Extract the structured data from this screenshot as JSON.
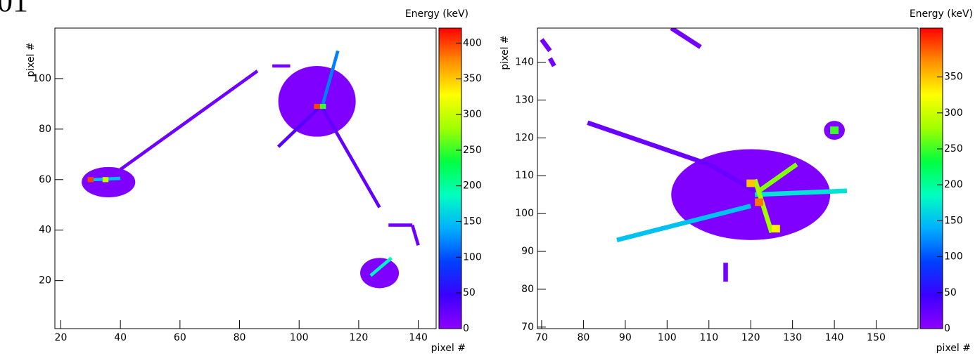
{
  "page_fragment": "01",
  "chart_data": [
    {
      "type": "heatmap",
      "x_label": "pixel #",
      "y_label": "pixel #",
      "colorbar_label": "Energy (keV)",
      "xlim": [
        18,
        146
      ],
      "ylim": [
        1,
        120
      ],
      "zlim": [
        0,
        421
      ],
      "xticks": [
        20,
        40,
        60,
        80,
        100,
        120,
        140
      ],
      "yticks": [
        20,
        40,
        60,
        80,
        100
      ],
      "zticks": [
        0,
        50,
        100,
        150,
        200,
        250,
        300,
        350,
        400
      ],
      "colorscale": [
        "#8f00ff",
        "#3a00ff",
        "#0040ff",
        "#00b0ff",
        "#00ffc0",
        "#00ff40",
        "#a0ff00",
        "#ffff00",
        "#ff9000",
        "#ff0000"
      ],
      "blobs": [
        {
          "x": 36,
          "y": 59,
          "rx": 9,
          "ry": 6,
          "value": 8
        },
        {
          "x": 106,
          "y": 91,
          "rx": 13,
          "ry": 14,
          "value": 8
        },
        {
          "x": 127,
          "y": 23,
          "rx": 6.5,
          "ry": 6,
          "value": 8
        }
      ],
      "tracks": [
        {
          "x": [
            40,
            86
          ],
          "y": [
            64,
            103
          ],
          "value": 18
        },
        {
          "x": [
            91,
            97
          ],
          "y": [
            105,
            105
          ],
          "value": 15
        },
        {
          "x": [
            93,
            108
          ],
          "y": [
            73,
            90
          ],
          "value": 30
        },
        {
          "x": [
            108,
            113
          ],
          "y": [
            90,
            111
          ],
          "value": 120
        },
        {
          "x": [
            108,
            127
          ],
          "y": [
            88,
            49
          ],
          "value": 25
        },
        {
          "x": [
            130,
            138
          ],
          "y": [
            42,
            42
          ],
          "value": 15
        },
        {
          "x": [
            138,
            140
          ],
          "y": [
            42,
            34
          ],
          "value": 20
        },
        {
          "x": [
            31,
            40
          ],
          "y": [
            60,
            60.5
          ],
          "value": 150
        },
        {
          "x": [
            124,
            131
          ],
          "y": [
            22,
            29
          ],
          "value": 180
        }
      ],
      "cells": [
        {
          "x": 106,
          "y": 89,
          "value": 400
        },
        {
          "x": 108,
          "y": 89,
          "value": 250
        },
        {
          "x": 30,
          "y": 60,
          "value": 400
        },
        {
          "x": 35,
          "y": 60,
          "value": 300
        }
      ]
    },
    {
      "type": "heatmap",
      "x_label": "pixel #",
      "y_label": "pixel #",
      "colorbar_label": "Energy (keV)",
      "xlim": [
        69,
        160
      ],
      "ylim": [
        69.6,
        149
      ],
      "zlim": [
        0,
        418
      ],
      "xticks": [
        70,
        80,
        90,
        100,
        110,
        120,
        130,
        140,
        150
      ],
      "yticks": [
        70,
        80,
        90,
        100,
        110,
        120,
        130,
        140
      ],
      "zticks": [
        0,
        50,
        100,
        150,
        200,
        250,
        300,
        350
      ],
      "colorscale": [
        "#8f00ff",
        "#3a00ff",
        "#0040ff",
        "#00b0ff",
        "#00ffc0",
        "#00ff40",
        "#a0ff00",
        "#ffff00",
        "#ff9000",
        "#ff0000"
      ],
      "blobs": [
        {
          "x": 120,
          "y": 105,
          "rx": 19,
          "ry": 12,
          "value": 8
        },
        {
          "x": 140,
          "y": 122,
          "rx": 2.5,
          "ry": 2.5,
          "value": 8
        }
      ],
      "tracks": [
        {
          "x": [
            81,
            110
          ],
          "y": [
            124,
            113
          ],
          "value": 20
        },
        {
          "x": [
            110,
            121
          ],
          "y": [
            113,
            106
          ],
          "value": 20
        },
        {
          "x": [
            88,
            120
          ],
          "y": [
            93,
            102
          ],
          "value": 150
        },
        {
          "x": [
            121,
            143
          ],
          "y": [
            105,
            106
          ],
          "value": 170
        },
        {
          "x": [
            122,
            131
          ],
          "y": [
            106,
            113
          ],
          "value": 270
        },
        {
          "x": [
            121,
            125
          ],
          "y": [
            109,
            95
          ],
          "value": 280
        },
        {
          "x": [
            101,
            108
          ],
          "y": [
            149,
            144
          ],
          "value": 15
        },
        {
          "x": [
            70,
            72
          ],
          "y": [
            146,
            143
          ],
          "value": 15
        },
        {
          "x": [
            72,
            73
          ],
          "y": [
            141,
            139
          ],
          "value": 15
        },
        {
          "x": [
            114,
            114
          ],
          "y": [
            82,
            87
          ],
          "value": 15
        }
      ],
      "cells": [
        {
          "x": 122,
          "y": 103,
          "value": 380
        },
        {
          "x": 120,
          "y": 108,
          "value": 350
        },
        {
          "x": 126,
          "y": 96,
          "value": 330
        },
        {
          "x": 140,
          "y": 122,
          "value": 250
        }
      ]
    }
  ]
}
